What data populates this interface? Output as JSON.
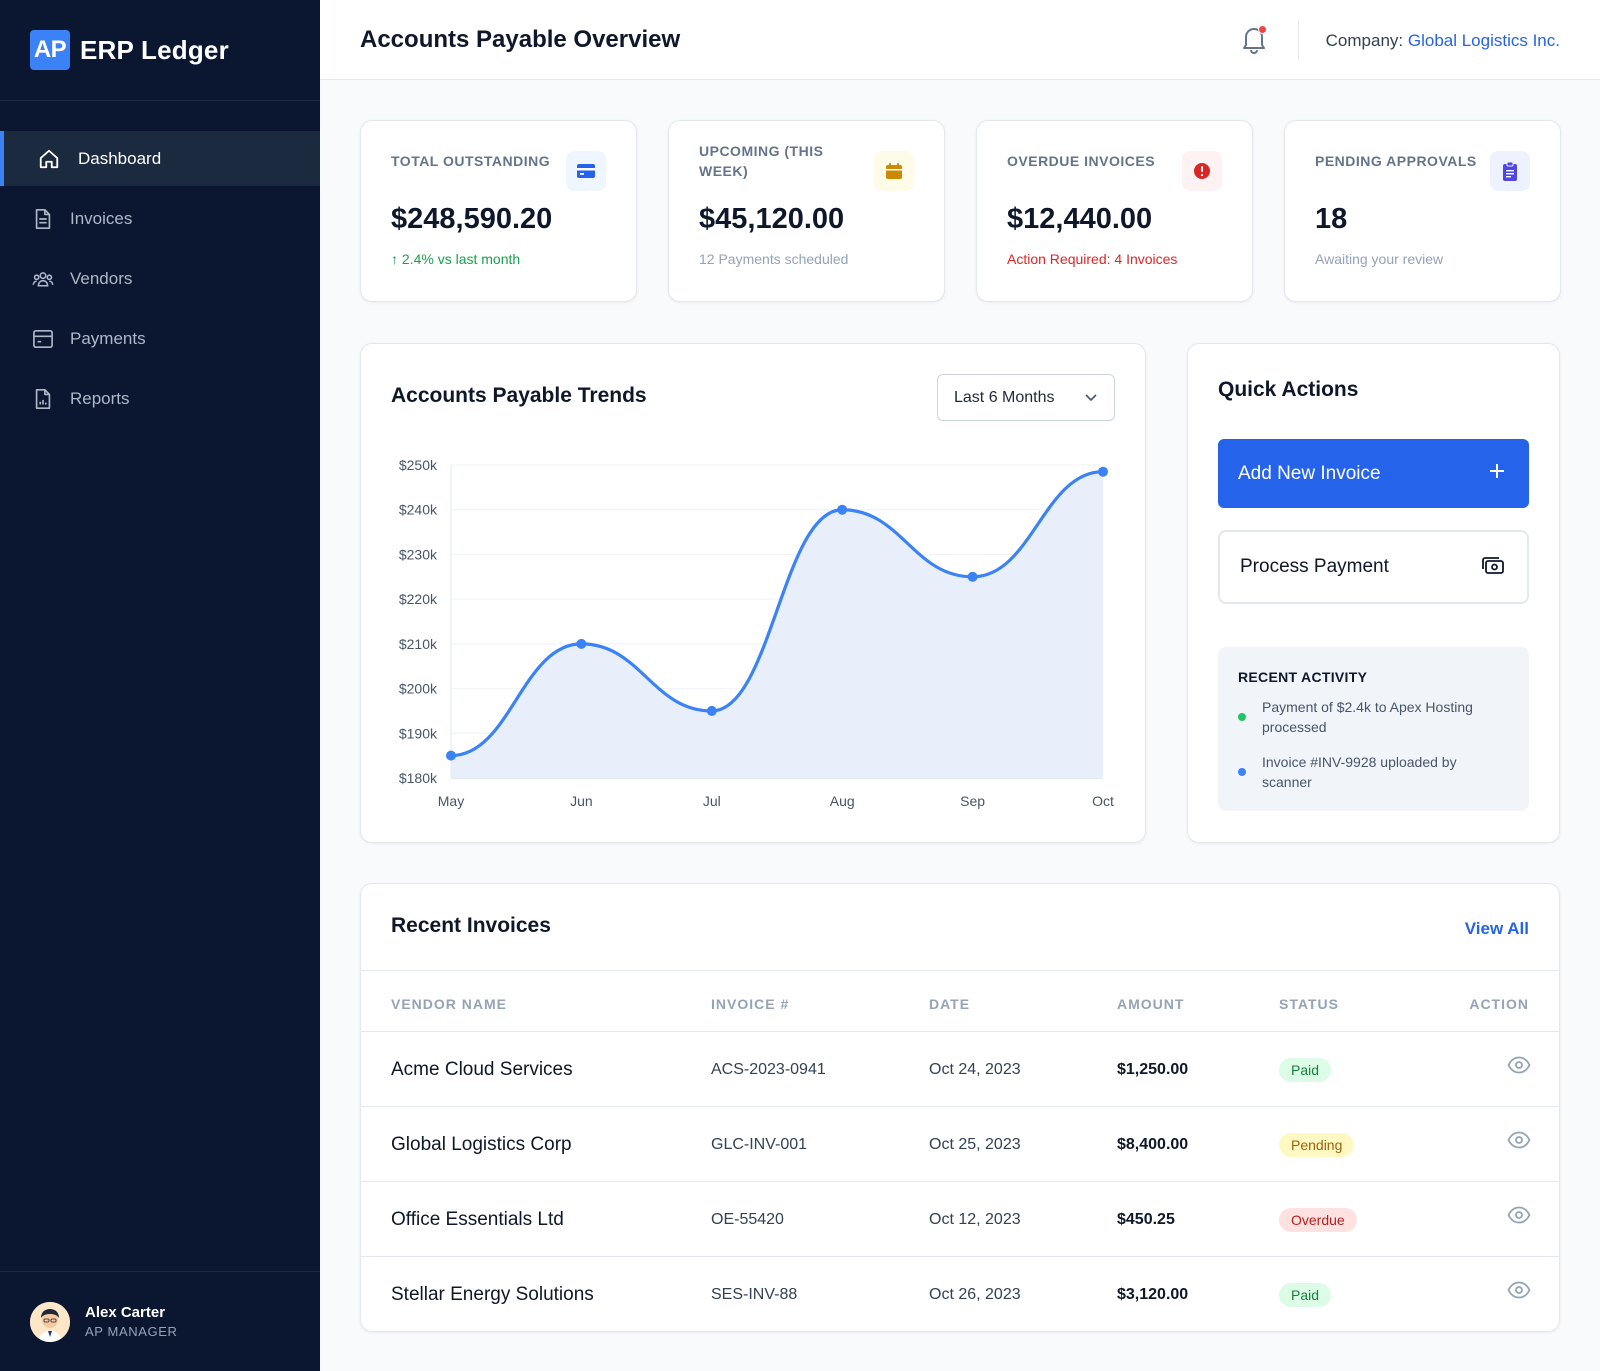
{
  "brand": {
    "badge": "AP",
    "name": "ERP Ledger",
    "accent": "#3b82f6"
  },
  "sidebar": {
    "items": [
      {
        "label": "Dashboard",
        "icon": "home-icon",
        "active": true
      },
      {
        "label": "Invoices",
        "icon": "file-icon"
      },
      {
        "label": "Vendors",
        "icon": "users-icon"
      },
      {
        "label": "Payments",
        "icon": "card-icon"
      },
      {
        "label": "Reports",
        "icon": "report-icon"
      }
    ]
  },
  "user": {
    "name": "Alex Carter",
    "role": "AP MANAGER"
  },
  "header": {
    "title": "Accounts Payable Overview",
    "company_label": "Company:",
    "company_name": "Global Logistics Inc."
  },
  "stats": [
    {
      "label": "TOTAL OUTSTANDING",
      "value": "$248,590.20",
      "sub": "↑ 2.4% vs last month",
      "icon": "credit-card-icon",
      "icon_color": "#2563eb",
      "icon_bg": "#eff6ff",
      "sub_color": "#16a34a"
    },
    {
      "label": "UPCOMING (THIS WEEK)",
      "value": "$45,120.00",
      "sub": "12 Payments scheduled",
      "icon": "calendar-icon",
      "icon_color": "#ca8a04",
      "icon_bg": "#fefce8",
      "sub_color": "#94a3b8"
    },
    {
      "label": "OVERDUE INVOICES",
      "value": "$12,440.00",
      "sub": "Action Required: 4 Invoices",
      "icon": "alert-icon",
      "icon_color": "#dc2626",
      "icon_bg": "#fef2f2",
      "sub_color": "#dc2626"
    },
    {
      "label": "PENDING APPROVALS",
      "value": "18",
      "sub": "Awaiting your review",
      "icon": "clipboard-icon",
      "icon_color": "#4f46e5",
      "icon_bg": "#eef2ff",
      "sub_color": "#94a3b8"
    }
  ],
  "trends": {
    "title": "Accounts Payable Trends",
    "range_select": "Last 6 Months"
  },
  "chart_data": {
    "type": "area",
    "title": "Accounts Payable Trends",
    "categories": [
      "May",
      "Jun",
      "Jul",
      "Aug",
      "Sep",
      "Oct"
    ],
    "values": [
      185000,
      210000,
      195000,
      240000,
      225000,
      248500
    ],
    "ylim": [
      180000,
      250000
    ],
    "yticks": [
      "$180k",
      "$190k",
      "$200k",
      "$210k",
      "$220k",
      "$230k",
      "$240k",
      "$250k"
    ],
    "line_color": "#3b82f6",
    "fill_color": "#e8effb",
    "grid": true,
    "legend": "none"
  },
  "quick_actions": {
    "title": "Quick Actions",
    "add_invoice": "Add New Invoice",
    "process_payment": "Process Payment",
    "activity_title": "RECENT ACTIVITY",
    "activity": [
      {
        "text": "Payment of $2.4k to Apex Hosting processed",
        "color": "#22c55e"
      },
      {
        "text": "Invoice #INV-9928 uploaded by scanner",
        "color": "#3b82f6"
      }
    ]
  },
  "invoices": {
    "title": "Recent Invoices",
    "view_all": "View All",
    "columns": [
      "VENDOR NAME",
      "INVOICE #",
      "DATE",
      "AMOUNT",
      "STATUS",
      "ACTION"
    ],
    "rows": [
      {
        "vendor": "Acme Cloud Services",
        "invoice": "ACS-2023-0941",
        "date": "Oct 24, 2023",
        "amount": "$1,250.00",
        "status": "Paid"
      },
      {
        "vendor": "Global Logistics Corp",
        "invoice": "GLC-INV-001",
        "date": "Oct 25, 2023",
        "amount": "$8,400.00",
        "status": "Pending"
      },
      {
        "vendor": "Office Essentials Ltd",
        "invoice": "OE-55420",
        "date": "Oct 12, 2023",
        "amount": "$450.25",
        "status": "Overdue"
      },
      {
        "vendor": "Stellar Energy Solutions",
        "invoice": "SES-INV-88",
        "date": "Oct 26, 2023",
        "amount": "$3,120.00",
        "status": "Paid"
      }
    ],
    "status_colors": {
      "Paid": {
        "bg": "#dcfce7",
        "fg": "#15803d"
      },
      "Pending": {
        "bg": "#fef9c3",
        "fg": "#a16207"
      },
      "Overdue": {
        "bg": "#fee2e2",
        "fg": "#b91c1c"
      }
    }
  }
}
